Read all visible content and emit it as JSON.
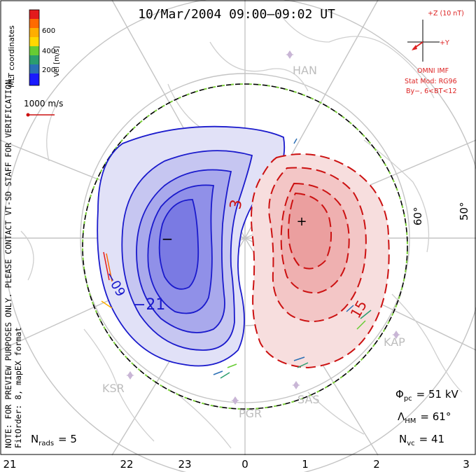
{
  "title": "10/Mar/2004 09:00–09:02 UT",
  "coord_label": "MLT coordinates",
  "colorbar": {
    "ticks": [
      "600",
      "400",
      "200"
    ],
    "unit": "Vel [m/s]",
    "colors": [
      "#e31a1c",
      "#ff6a00",
      "#ffae00",
      "#ffd800",
      "#66cc33",
      "#2a9d6e",
      "#2a6fb5",
      "#1a1aff"
    ]
  },
  "scale_vector_label": "1000 m/s",
  "note_text": "NOTE: FOR PREVIEW PURPOSES ONLY. PLEASE CONTACT VT-SD STAFF FOR VERIFICATION.",
  "fit_order_text": "FitOrder: 8, mapEX format",
  "imf": {
    "z_label": "+Z (10 nT)",
    "y_label": "+Y",
    "source": "OMNI IMF",
    "model": "Stat Mod: RG96",
    "condition": "By−, 6<BT<12"
  },
  "latitude_labels": [
    "60°",
    "50°"
  ],
  "stations": [
    "HAN",
    "KSR",
    "PGR",
    "SAS",
    "KAP"
  ],
  "contour_labels": [
    "3",
    "−21",
    "−09",
    "15"
  ],
  "extremum_markers": {
    "min": "−",
    "max": "+"
  },
  "stats": {
    "phi_pc": {
      "symbol": "Φ",
      "sub": "pc",
      "value": "= 51 kV"
    },
    "lambda_hm": {
      "symbol": "Λ",
      "sub": "HM",
      "value": "= 61°"
    },
    "n_vc": {
      "symbol": "N",
      "sub": "vc",
      "value": "= 41"
    },
    "n_rads": {
      "symbol": "N",
      "sub": "rads",
      "value": "= 5"
    }
  },
  "mlt_axis": [
    "21",
    "22",
    "23",
    "0",
    "1",
    "2",
    "3"
  ],
  "colors": {
    "negative_fill": "#8c8cf0",
    "negative_line": "#1a1acc",
    "positive_fill": "#f2a6a6",
    "positive_line": "#cc1111",
    "boundary_dash": "#7ccf3a",
    "grid": "#bdbdbd",
    "coast": "#c8c8c8",
    "imf_red": "#dd2222"
  }
}
